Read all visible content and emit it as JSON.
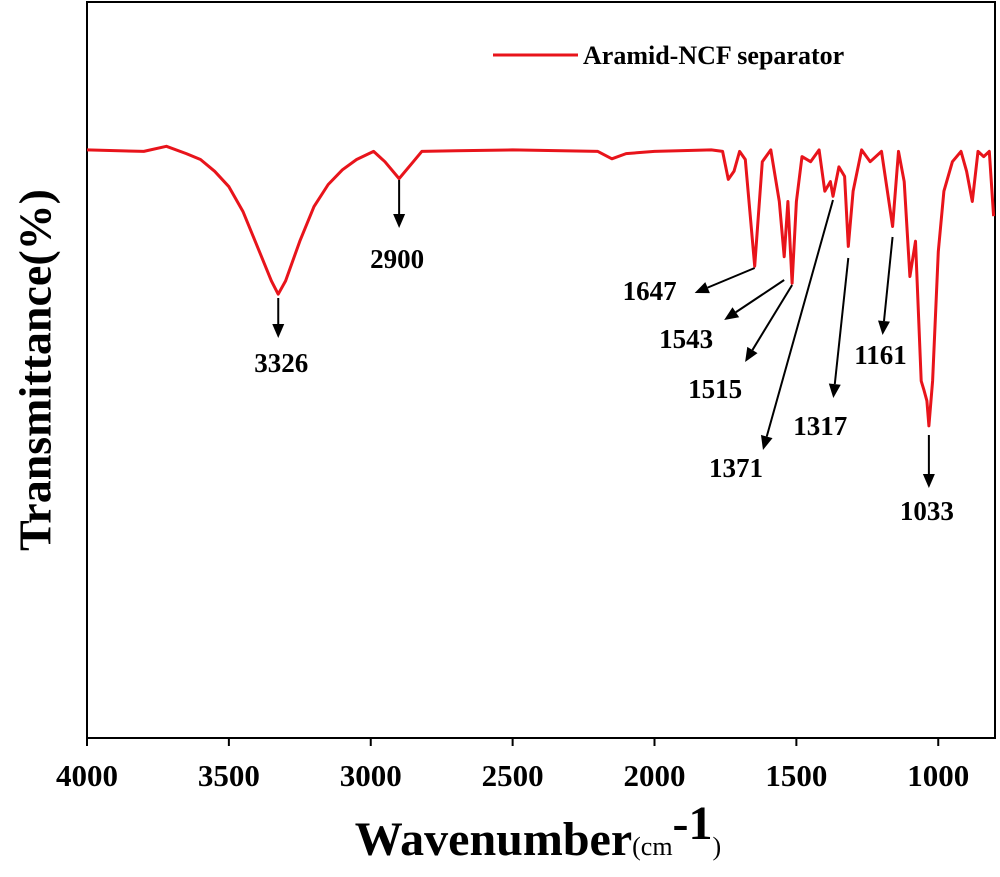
{
  "chart_data": {
    "type": "line",
    "xlabel": [
      "Wavenumber",
      "(cm",
      "-1",
      ")"
    ],
    "ylabel": "Transmittance(%)",
    "xlim": [
      4000,
      800
    ],
    "ylim": [
      0,
      100
    ],
    "xticks": [
      4000,
      3500,
      3000,
      2500,
      2000,
      1500,
      1000
    ],
    "series": [
      {
        "name": "Aramid-NCF separator",
        "color": "#e8141b",
        "x": [
          4000,
          3800,
          3720,
          3650,
          3600,
          3550,
          3500,
          3450,
          3400,
          3350,
          3326,
          3300,
          3250,
          3200,
          3150,
          3100,
          3050,
          2990,
          2950,
          2900,
          2850,
          2820,
          2700,
          2500,
          2200,
          2150,
          2100,
          2000,
          1800,
          1760,
          1740,
          1720,
          1700,
          1680,
          1647,
          1620,
          1590,
          1560,
          1543,
          1530,
          1515,
          1500,
          1480,
          1450,
          1420,
          1400,
          1380,
          1371,
          1350,
          1330,
          1317,
          1300,
          1270,
          1240,
          1200,
          1161,
          1140,
          1120,
          1100,
          1080,
          1060,
          1050,
          1040,
          1033,
          1020,
          1000,
          980,
          950,
          920,
          900,
          880,
          860,
          840,
          820,
          805
        ],
        "values": [
          79.9,
          79.7,
          80.4,
          79.4,
          78.6,
          77.0,
          74.9,
          71.5,
          66.8,
          62.1,
          60.3,
          62.1,
          67.5,
          72.2,
          75.2,
          77.2,
          78.6,
          79.7,
          78.3,
          76.0,
          78.3,
          79.7,
          79.8,
          79.9,
          79.7,
          78.7,
          79.4,
          79.7,
          79.9,
          79.7,
          75.9,
          77.0,
          79.7,
          78.6,
          64.1,
          78.3,
          79.9,
          72.9,
          65.4,
          72.9,
          61.8,
          72.9,
          79.0,
          78.3,
          79.9,
          74.3,
          75.6,
          73.6,
          77.6,
          76.3,
          66.8,
          74.3,
          79.9,
          78.3,
          79.7,
          69.5,
          79.7,
          75.6,
          62.7,
          67.5,
          48.5,
          47.2,
          45.8,
          42.4,
          48.5,
          66.1,
          74.3,
          78.3,
          79.7,
          77.0,
          72.9,
          79.7,
          79.0,
          79.7,
          70.9
        ]
      }
    ],
    "peaks": [
      3326,
      2900,
      1647,
      1543,
      1515,
      1371,
      1317,
      1161,
      1033
    ],
    "legend": "upper right"
  }
}
